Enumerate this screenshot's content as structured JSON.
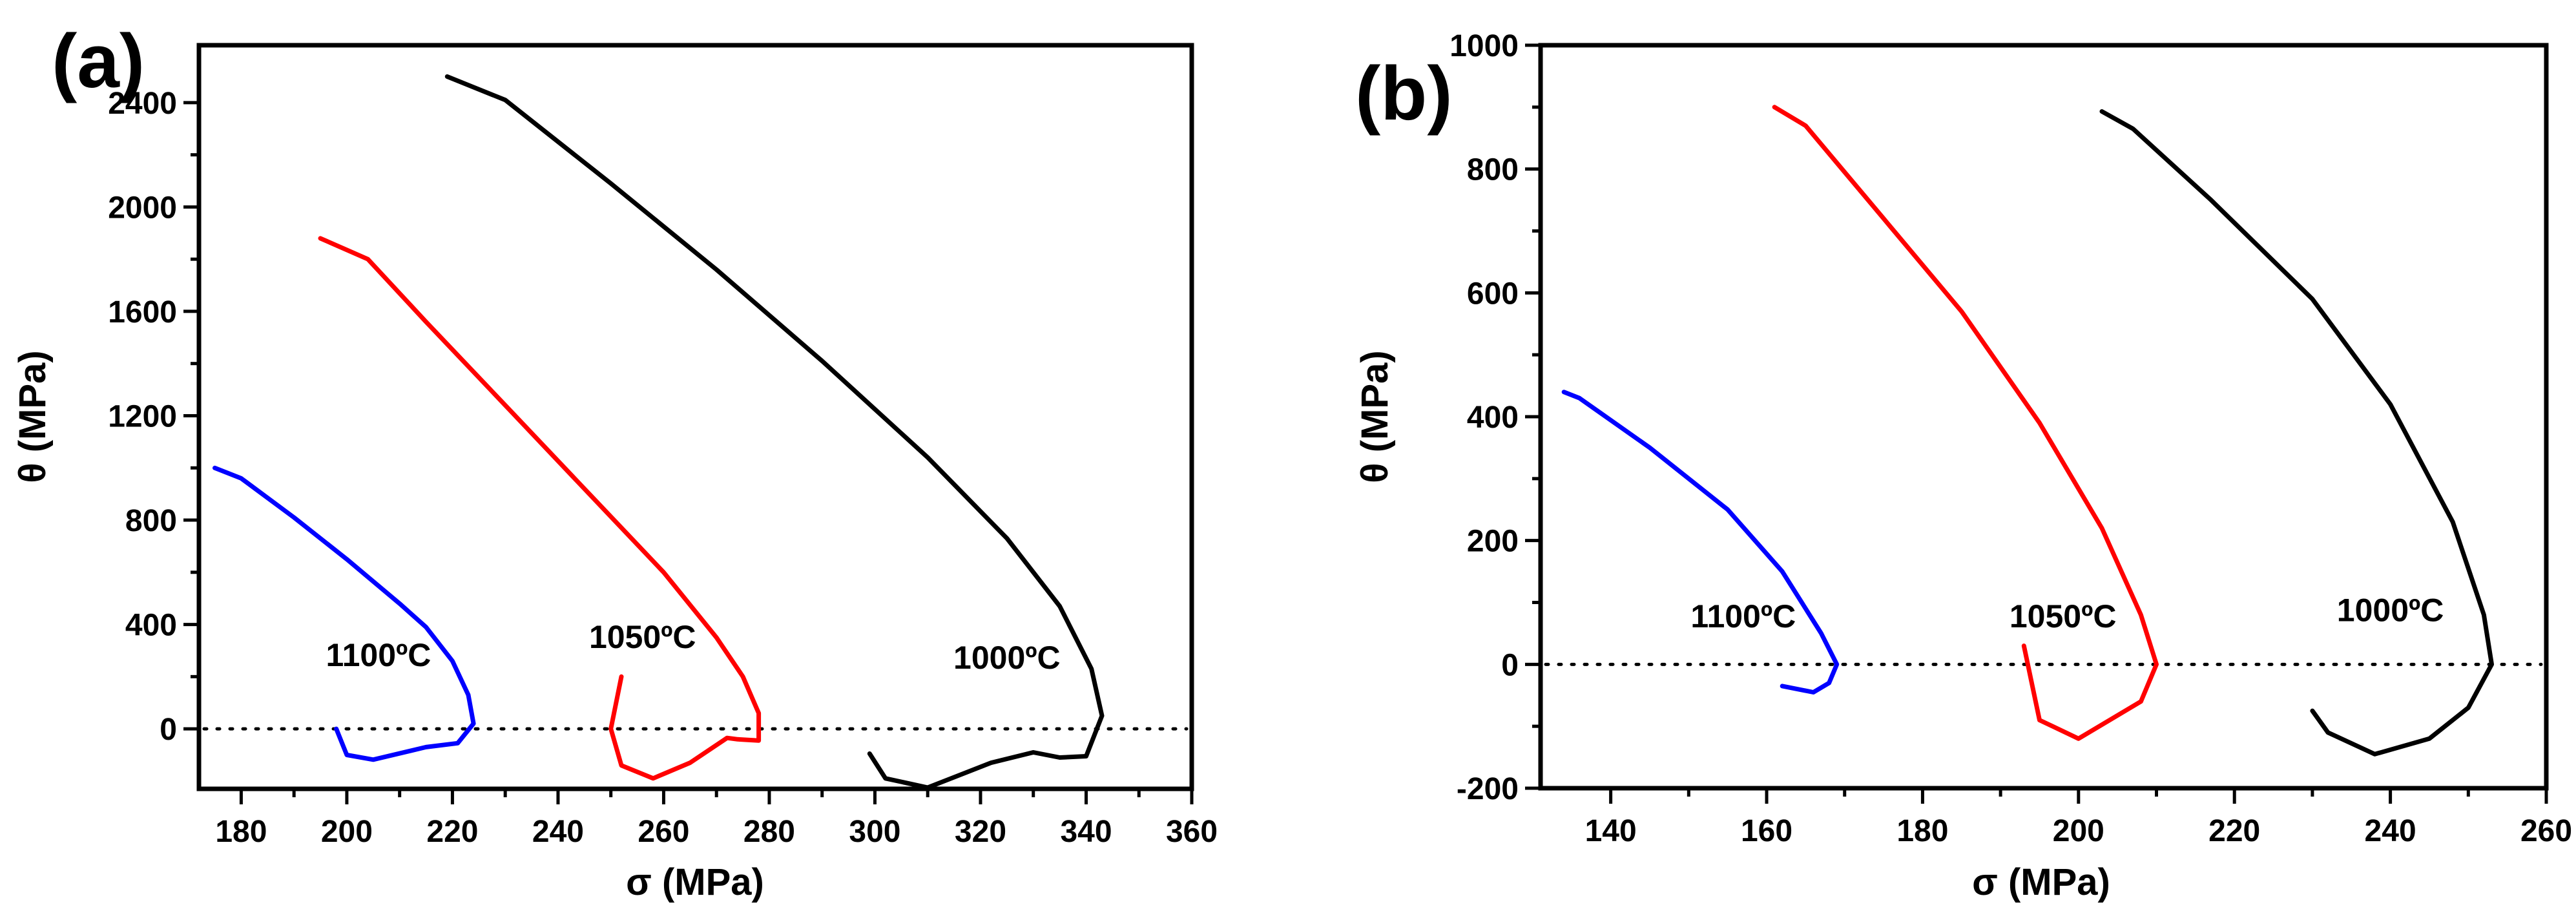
{
  "chart_data": [
    {
      "panel": "(a)",
      "type": "line",
      "xlabel": "σ (MPa)",
      "ylabel": "θ (MPa)",
      "xlim": [
        172,
        360
      ],
      "ylim": [
        -230,
        2620
      ],
      "xticks": [
        180,
        200,
        220,
        240,
        260,
        280,
        300,
        320,
        340,
        360
      ],
      "yticks": [
        0,
        400,
        800,
        1200,
        1600,
        2000,
        2400
      ],
      "zero_line": "dotted",
      "series": [
        {
          "name": "1100°C",
          "color": "#0000ff",
          "points": [
            [
              175,
              1000
            ],
            [
              180,
              960
            ],
            [
              190,
              810
            ],
            [
              200,
              650
            ],
            [
              210,
              480
            ],
            [
              215,
              390
            ],
            [
              220,
              260
            ],
            [
              223,
              130
            ],
            [
              224,
              20
            ],
            [
              221,
              -55
            ],
            [
              215,
              -70
            ],
            [
              205,
              -118
            ],
            [
              200,
              -100
            ],
            [
              198,
              0
            ]
          ]
        },
        {
          "name": "1050°C",
          "color": "#ff0000",
          "points": [
            [
              195,
              1880
            ],
            [
              204,
              1800
            ],
            [
              215,
              1560
            ],
            [
              230,
              1240
            ],
            [
              245,
              920
            ],
            [
              260,
              600
            ],
            [
              270,
              350
            ],
            [
              275,
              200
            ],
            [
              278,
              60
            ],
            [
              278,
              -45
            ],
            [
              274,
              -40
            ],
            [
              272,
              -35
            ],
            [
              265,
              -130
            ],
            [
              258,
              -190
            ],
            [
              252,
              -140
            ],
            [
              250,
              0
            ],
            [
              252,
              200
            ]
          ]
        },
        {
          "name": "1000°C",
          "color": "#000000",
          "points": [
            [
              219,
              2500
            ],
            [
              230,
              2410
            ],
            [
              250,
              2090
            ],
            [
              270,
              1760
            ],
            [
              290,
              1410
            ],
            [
              310,
              1040
            ],
            [
              325,
              730
            ],
            [
              335,
              470
            ],
            [
              341,
              230
            ],
            [
              343,
              50
            ],
            [
              340,
              -105
            ],
            [
              335,
              -110
            ],
            [
              330,
              -90
            ],
            [
              322,
              -130
            ],
            [
              310,
              -225
            ],
            [
              302,
              -190
            ],
            [
              299,
              -95
            ]
          ]
        }
      ],
      "annotations": [
        {
          "text": "1100ºC",
          "x": 206,
          "y": 240
        },
        {
          "text": "1050ºC",
          "x": 256,
          "y": 310
        },
        {
          "text": "1000ºC",
          "x": 325,
          "y": 230
        }
      ]
    },
    {
      "panel": "(b)",
      "type": "line",
      "xlabel": "σ (MPa)",
      "ylabel": "θ (MPa)",
      "xlim": [
        131,
        260
      ],
      "ylim": [
        -200,
        1000
      ],
      "xticks": [
        140,
        160,
        180,
        200,
        220,
        240,
        260
      ],
      "yticks": [
        -200,
        0,
        200,
        400,
        600,
        800,
        1000
      ],
      "zero_line": "dotted",
      "series": [
        {
          "name": "1100°C",
          "color": "#0000ff",
          "points": [
            [
              134,
              440
            ],
            [
              136,
              430
            ],
            [
              145,
              350
            ],
            [
              155,
              250
            ],
            [
              162,
              150
            ],
            [
              167,
              50
            ],
            [
              169,
              0
            ],
            [
              168,
              -30
            ],
            [
              166,
              -45
            ],
            [
              162,
              -35
            ]
          ]
        },
        {
          "name": "1050°C",
          "color": "#ff0000",
          "points": [
            [
              161,
              900
            ],
            [
              165,
              870
            ],
            [
              175,
              720
            ],
            [
              185,
              570
            ],
            [
              195,
              390
            ],
            [
              203,
              220
            ],
            [
              208,
              80
            ],
            [
              210,
              0
            ],
            [
              208,
              -60
            ],
            [
              200,
              -120
            ],
            [
              195,
              -90
            ],
            [
              193,
              30
            ]
          ]
        },
        {
          "name": "1000°C",
          "color": "#000000",
          "points": [
            [
              203,
              893
            ],
            [
              207,
              865
            ],
            [
              217,
              750
            ],
            [
              230,
              590
            ],
            [
              240,
              420
            ],
            [
              248,
              230
            ],
            [
              252,
              80
            ],
            [
              253,
              0
            ],
            [
              250,
              -70
            ],
            [
              245,
              -120
            ],
            [
              238,
              -145
            ],
            [
              232,
              -110
            ],
            [
              230,
              -75
            ]
          ]
        }
      ],
      "annotations": [
        {
          "text": "1100ºC",
          "x": 157,
          "y": 60
        },
        {
          "text": "1050ºC",
          "x": 198,
          "y": 60
        },
        {
          "text": "1000ºC",
          "x": 240,
          "y": 70
        }
      ]
    }
  ]
}
